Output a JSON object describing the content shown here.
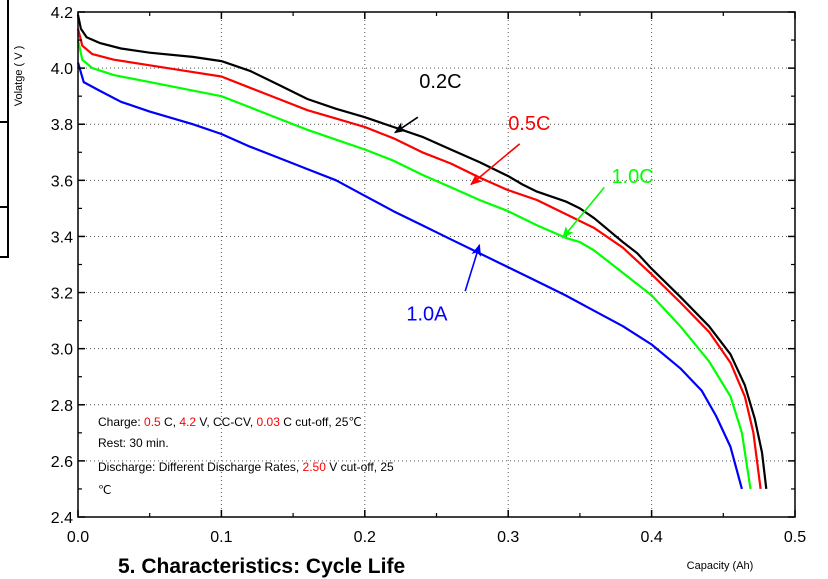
{
  "chart_data": {
    "type": "line",
    "title": "",
    "xlabel": "Capacity (Ah)",
    "ylabel": "Volatge ( V )",
    "xlim": [
      0.0,
      0.5
    ],
    "ylim": [
      2.4,
      4.2
    ],
    "x_ticks": [
      "0.0",
      "0.1",
      "0.2",
      "0.3",
      "0.4",
      "0.5"
    ],
    "y_ticks": [
      "2.4",
      "2.6",
      "2.8",
      "3.0",
      "3.2",
      "3.4",
      "3.6",
      "3.8",
      "4.0",
      "4.2"
    ],
    "grid": true,
    "series": [
      {
        "name": "0.2C",
        "color": "#000000",
        "points": [
          [
            0.0,
            4.19
          ],
          [
            0.002,
            4.14
          ],
          [
            0.006,
            4.11
          ],
          [
            0.015,
            4.09
          ],
          [
            0.03,
            4.07
          ],
          [
            0.05,
            4.055
          ],
          [
            0.08,
            4.04
          ],
          [
            0.1,
            4.025
          ],
          [
            0.12,
            3.99
          ],
          [
            0.14,
            3.94
          ],
          [
            0.16,
            3.89
          ],
          [
            0.18,
            3.855
          ],
          [
            0.2,
            3.825
          ],
          [
            0.22,
            3.79
          ],
          [
            0.24,
            3.755
          ],
          [
            0.26,
            3.71
          ],
          [
            0.28,
            3.665
          ],
          [
            0.3,
            3.615
          ],
          [
            0.31,
            3.585
          ],
          [
            0.32,
            3.56
          ],
          [
            0.34,
            3.525
          ],
          [
            0.35,
            3.5
          ],
          [
            0.36,
            3.465
          ],
          [
            0.38,
            3.38
          ],
          [
            0.39,
            3.34
          ],
          [
            0.4,
            3.285
          ],
          [
            0.42,
            3.185
          ],
          [
            0.44,
            3.08
          ],
          [
            0.455,
            2.98
          ],
          [
            0.465,
            2.87
          ],
          [
            0.472,
            2.75
          ],
          [
            0.477,
            2.63
          ],
          [
            0.48,
            2.5
          ]
        ]
      },
      {
        "name": "0.5C",
        "color": "#ff0000",
        "points": [
          [
            0.0,
            4.14
          ],
          [
            0.003,
            4.08
          ],
          [
            0.01,
            4.05
          ],
          [
            0.025,
            4.03
          ],
          [
            0.05,
            4.01
          ],
          [
            0.075,
            3.99
          ],
          [
            0.1,
            3.97
          ],
          [
            0.12,
            3.93
          ],
          [
            0.14,
            3.89
          ],
          [
            0.16,
            3.85
          ],
          [
            0.18,
            3.82
          ],
          [
            0.2,
            3.79
          ],
          [
            0.22,
            3.75
          ],
          [
            0.24,
            3.7
          ],
          [
            0.26,
            3.66
          ],
          [
            0.28,
            3.61
          ],
          [
            0.3,
            3.565
          ],
          [
            0.32,
            3.53
          ],
          [
            0.34,
            3.48
          ],
          [
            0.36,
            3.43
          ],
          [
            0.38,
            3.36
          ],
          [
            0.4,
            3.265
          ],
          [
            0.42,
            3.165
          ],
          [
            0.44,
            3.06
          ],
          [
            0.455,
            2.95
          ],
          [
            0.465,
            2.83
          ],
          [
            0.471,
            2.7
          ],
          [
            0.476,
            2.5
          ]
        ]
      },
      {
        "name": "1.0C",
        "color": "#00ff00",
        "points": [
          [
            0.0,
            4.1
          ],
          [
            0.003,
            4.03
          ],
          [
            0.01,
            4.0
          ],
          [
            0.025,
            3.975
          ],
          [
            0.05,
            3.95
          ],
          [
            0.08,
            3.92
          ],
          [
            0.1,
            3.9
          ],
          [
            0.12,
            3.86
          ],
          [
            0.14,
            3.82
          ],
          [
            0.16,
            3.78
          ],
          [
            0.18,
            3.745
          ],
          [
            0.2,
            3.71
          ],
          [
            0.22,
            3.67
          ],
          [
            0.24,
            3.62
          ],
          [
            0.26,
            3.575
          ],
          [
            0.28,
            3.53
          ],
          [
            0.3,
            3.49
          ],
          [
            0.32,
            3.44
          ],
          [
            0.34,
            3.395
          ],
          [
            0.35,
            3.38
          ],
          [
            0.36,
            3.35
          ],
          [
            0.38,
            3.27
          ],
          [
            0.4,
            3.19
          ],
          [
            0.42,
            3.08
          ],
          [
            0.44,
            2.955
          ],
          [
            0.455,
            2.83
          ],
          [
            0.463,
            2.7
          ],
          [
            0.469,
            2.5
          ]
        ]
      },
      {
        "name": "1.0A",
        "color": "#0000ff",
        "points": [
          [
            0.0,
            4.02
          ],
          [
            0.004,
            3.95
          ],
          [
            0.015,
            3.92
          ],
          [
            0.03,
            3.88
          ],
          [
            0.05,
            3.845
          ],
          [
            0.08,
            3.8
          ],
          [
            0.1,
            3.765
          ],
          [
            0.12,
            3.72
          ],
          [
            0.14,
            3.68
          ],
          [
            0.16,
            3.64
          ],
          [
            0.18,
            3.6
          ],
          [
            0.2,
            3.545
          ],
          [
            0.22,
            3.49
          ],
          [
            0.24,
            3.44
          ],
          [
            0.26,
            3.39
          ],
          [
            0.28,
            3.34
          ],
          [
            0.3,
            3.29
          ],
          [
            0.32,
            3.24
          ],
          [
            0.34,
            3.19
          ],
          [
            0.36,
            3.135
          ],
          [
            0.38,
            3.08
          ],
          [
            0.4,
            3.015
          ],
          [
            0.42,
            2.93
          ],
          [
            0.435,
            2.85
          ],
          [
            0.445,
            2.76
          ],
          [
            0.455,
            2.65
          ],
          [
            0.463,
            2.5
          ]
        ]
      }
    ],
    "curve_labels": [
      {
        "text": "0.2C",
        "color": "#000000",
        "at": [
          0.238,
          3.93
        ],
        "arrow_from": [
          0.237,
          3.825
        ],
        "arrow_to": [
          0.221,
          3.77
        ]
      },
      {
        "text": "0.5C",
        "color": "#ff0000",
        "at": [
          0.3,
          3.78
        ],
        "arrow_from": [
          0.308,
          3.73
        ],
        "arrow_to": [
          0.274,
          3.585
        ]
      },
      {
        "text": "1.0C",
        "color": "#00ff00",
        "at": [
          0.372,
          3.59
        ],
        "arrow_from": [
          0.367,
          3.575
        ],
        "arrow_to": [
          0.338,
          3.395
        ]
      },
      {
        "text": "1.0A",
        "color": "#0000ff",
        "at": [
          0.229,
          3.1
        ],
        "arrow_from": [
          0.27,
          3.205
        ],
        "arrow_to": [
          0.28,
          3.37
        ]
      }
    ],
    "annotation_lines": [
      [
        {
          "text": "Charge: ",
          "color": "#000000"
        },
        {
          "text": "0.5",
          "color": "#ff0000"
        },
        {
          "text": " C, ",
          "color": "#000000"
        },
        {
          "text": "4.2",
          "color": "#ff0000"
        },
        {
          "text": " V, CC-CV, ",
          "color": "#000000"
        },
        {
          "text": "0.03",
          "color": "#ff0000"
        },
        {
          "text": " C cut-off, 25℃",
          "color": "#000000"
        }
      ],
      [
        {
          "text": "Rest: 30 min.",
          "color": "#000000"
        }
      ],
      [
        {
          "text": "Discharge: Different Discharge Rates, ",
          "color": "#000000"
        },
        {
          "text": "2.50",
          "color": "#ff0000"
        },
        {
          "text": " V cut-off, 25",
          "color": "#000000"
        }
      ],
      [
        {
          "text": "℃",
          "color": "#000000"
        }
      ]
    ]
  },
  "page": {
    "bottom_heading": "5. Characteristics: Cycle Life"
  }
}
